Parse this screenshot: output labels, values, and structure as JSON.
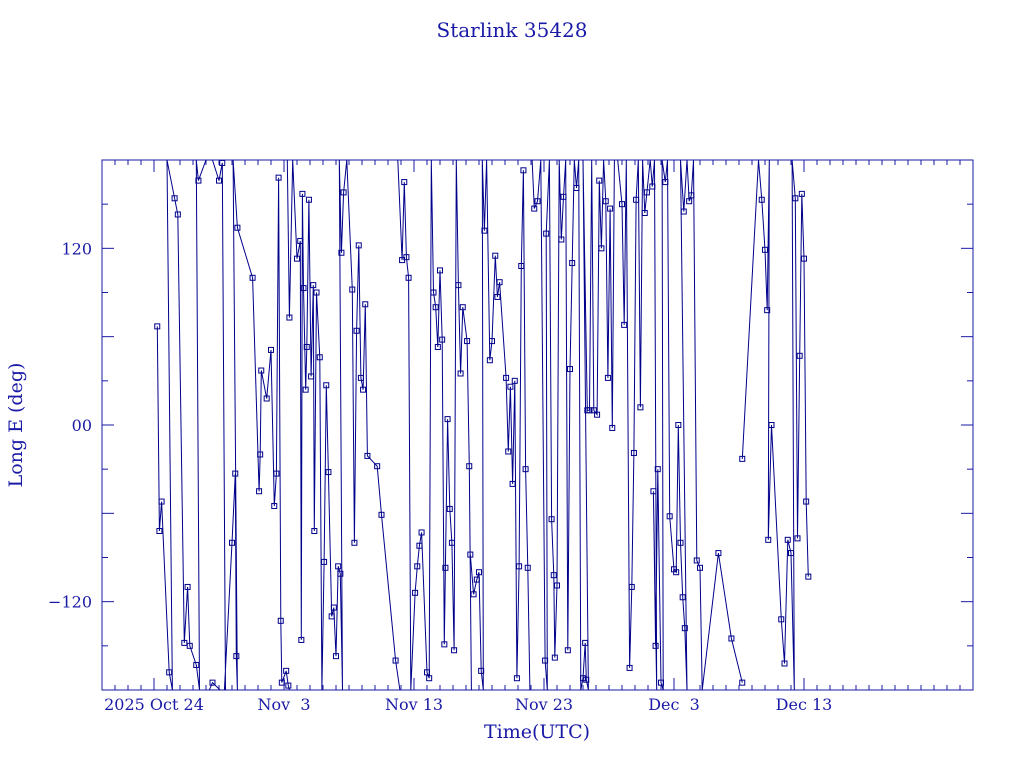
{
  "chart_data": {
    "type": "line",
    "title": "Starlink 35428",
    "xlabel": "Time(UTC)",
    "ylabel": "Long E (deg)",
    "x_ticks": [
      {
        "date": "2025-10-24",
        "label": "2025 Oct 24"
      },
      {
        "date": "2025-11-03",
        "label": "Nov  3"
      },
      {
        "date": "2025-11-13",
        "label": "Nov 13"
      },
      {
        "date": "2025-11-23",
        "label": "Nov 23"
      },
      {
        "date": "2025-12-03",
        "label": "Dec  3"
      },
      {
        "date": "2025-12-13",
        "label": "Dec 13"
      }
    ],
    "y_ticks": [
      {
        "value": 120,
        "label": "120"
      },
      {
        "value": 0,
        "label": "00"
      },
      {
        "value": -120,
        "label": "−120"
      }
    ],
    "xlim": [
      "2025-10-20",
      "2025-12-26"
    ],
    "ylim": [
      -180,
      180
    ],
    "grid": false,
    "colors": {
      "series": "#00008b",
      "axes": "#1a1aa6",
      "text": "#1a1aa6"
    },
    "series": [
      {
        "values": [
          [
            "2025-10-24T06:00",
            67
          ],
          [
            "2025-10-24T10:00",
            -72
          ],
          [
            "2025-10-24T14:00",
            -52
          ],
          [
            "2025-10-25T04:00",
            -168
          ],
          [
            "2025-10-25T10:00",
            -180
          ],
          [
            "2025-10-25T00:00",
            180
          ],
          [
            "2025-10-25T14:00",
            154
          ],
          [
            "2025-10-25T20:00",
            143
          ],
          [
            "2025-10-26T08:00",
            -148
          ],
          [
            "2025-10-26T14:00",
            -110
          ],
          [
            "2025-10-26T18:00",
            -150
          ],
          [
            "2025-10-27T06:00",
            -163
          ],
          [
            "2025-10-27T12:00",
            -180
          ],
          [
            "2025-10-27T06:00",
            180
          ],
          [
            "2025-10-27T10:00",
            166
          ],
          [
            "2025-10-28T00:00",
            180
          ],
          [
            "2025-10-28T12:00",
            180
          ],
          [
            "2025-10-29T00:00",
            166
          ],
          [
            "2025-10-29T06:00",
            178
          ],
          [
            "2025-10-29T12:00",
            -180
          ],
          [
            "2025-10-28T06:00",
            -180
          ],
          [
            "2025-10-28T12:00",
            -175
          ],
          [
            "2025-10-29T02:00",
            -180
          ],
          [
            "2025-10-29T10:00",
            -180
          ],
          [
            "2025-10-30T00:00",
            -80
          ],
          [
            "2025-10-30T06:00",
            -33
          ],
          [
            "2025-10-30T08:00",
            -157
          ],
          [
            "2025-10-30T10:00",
            -180
          ],
          [
            "2025-10-30T02:00",
            180
          ],
          [
            "2025-10-30T10:00",
            134
          ],
          [
            "2025-10-31T14:00",
            100
          ],
          [
            "2025-11-01T02:00",
            -45
          ],
          [
            "2025-11-01T04:00",
            -20
          ],
          [
            "2025-11-01T06:00",
            37
          ],
          [
            "2025-11-01T16:00",
            18
          ],
          [
            "2025-11-02T00:00",
            51
          ],
          [
            "2025-11-02T06:00",
            -55
          ],
          [
            "2025-11-02T10:00",
            -33
          ],
          [
            "2025-11-02T14:00",
            168
          ],
          [
            "2025-11-02T18:00",
            -133
          ],
          [
            "2025-11-02T20:00",
            -175
          ],
          [
            "2025-11-03T04:00",
            -167
          ],
          [
            "2025-11-03T08:00",
            -177
          ],
          [
            "2025-11-03T10:00",
            -180
          ]
        ]
      },
      {
        "values": [
          [
            "2025-11-03T06:00",
            180
          ],
          [
            "2025-11-03T10:00",
            73
          ],
          [
            "2025-11-03T16:00",
            180
          ],
          [
            "2025-11-04T00:00",
            113
          ],
          [
            "2025-11-04T06:00",
            125
          ],
          [
            "2025-11-04T08:00",
            -146
          ],
          [
            "2025-11-04T10:00",
            157
          ],
          [
            "2025-11-04T12:00",
            93
          ],
          [
            "2025-11-04T16:00",
            24
          ],
          [
            "2025-11-04T18:00",
            53
          ],
          [
            "2025-11-04T22:00",
            153
          ],
          [
            "2025-11-05T02:00",
            33
          ],
          [
            "2025-11-05T06:00",
            95
          ],
          [
            "2025-11-05T08:00",
            -72
          ],
          [
            "2025-11-05T12:00",
            90
          ],
          [
            "2025-11-05T18:00",
            46
          ],
          [
            "2025-11-05T22:00",
            -180
          ],
          [
            "2025-11-06T02:00",
            -93
          ],
          [
            "2025-11-06T06:00",
            27
          ],
          [
            "2025-11-06T10:00",
            -32
          ],
          [
            "2025-11-06T16:00",
            -130
          ],
          [
            "2025-11-06T20:00",
            -124
          ],
          [
            "2025-11-07T00:00",
            -157
          ],
          [
            "2025-11-07T04:00",
            -96
          ],
          [
            "2025-11-07T08:00",
            -101
          ],
          [
            "2025-11-07T12:00",
            -180
          ],
          [
            "2025-11-07T06:00",
            180
          ],
          [
            "2025-11-07T10:00",
            117
          ],
          [
            "2025-11-07T14:00",
            158
          ],
          [
            "2025-11-07T20:00",
            180
          ],
          [
            "2025-11-08T06:00",
            92
          ],
          [
            "2025-11-08T10:00",
            -80
          ],
          [
            "2025-11-08T14:00",
            64
          ],
          [
            "2025-11-08T18:00",
            122
          ],
          [
            "2025-11-08T22:00",
            32
          ],
          [
            "2025-11-09T02:00",
            24
          ],
          [
            "2025-11-09T06:00",
            82
          ],
          [
            "2025-11-09T10:00",
            -21
          ],
          [
            "2025-11-10T04:00",
            -28
          ],
          [
            "2025-11-10T12:00",
            -61
          ],
          [
            "2025-11-11T14:00",
            -160
          ],
          [
            "2025-11-11T22:00",
            -180
          ]
        ]
      },
      {
        "values": [
          [
            "2025-11-11T18:00",
            180
          ],
          [
            "2025-11-12T02:00",
            112
          ],
          [
            "2025-11-12T06:00",
            165
          ],
          [
            "2025-11-12T10:00",
            114
          ],
          [
            "2025-11-12T14:00",
            100
          ],
          [
            "2025-11-12T18:00",
            -180
          ],
          [
            "2025-11-13T02:00",
            -114
          ],
          [
            "2025-11-13T06:00",
            -96
          ],
          [
            "2025-11-13T10:00",
            -82
          ],
          [
            "2025-11-13T14:00",
            -73
          ],
          [
            "2025-11-14T00:00",
            -168
          ],
          [
            "2025-11-14T04:00",
            -172
          ],
          [
            "2025-11-14T08:00",
            180
          ],
          [
            "2025-11-14T12:00",
            90
          ],
          [
            "2025-11-14T16:00",
            80
          ],
          [
            "2025-11-14T20:00",
            53
          ],
          [
            "2025-11-15T00:00",
            105
          ],
          [
            "2025-11-15T04:00",
            58
          ],
          [
            "2025-11-15T08:00",
            -149
          ],
          [
            "2025-11-15T10:00",
            -97
          ],
          [
            "2025-11-15T14:00",
            4
          ],
          [
            "2025-11-15T18:00",
            -57
          ],
          [
            "2025-11-15T22:00",
            -80
          ],
          [
            "2025-11-16T02:00",
            -153
          ],
          [
            "2025-11-16T06:00",
            180
          ],
          [
            "2025-11-16T10:00",
            95
          ],
          [
            "2025-11-16T14:00",
            35
          ],
          [
            "2025-11-16T18:00",
            80
          ],
          [
            "2025-11-17T02:00",
            57
          ],
          [
            "2025-11-17T06:00",
            -28
          ],
          [
            "2025-11-17T10:00",
            -180
          ]
        ]
      },
      {
        "values": [
          [
            "2025-11-17T08:00",
            -88
          ],
          [
            "2025-11-17T14:00",
            -115
          ],
          [
            "2025-11-17T20:00",
            -105
          ],
          [
            "2025-11-18T00:00",
            -100
          ],
          [
            "2025-11-18T04:00",
            -167
          ],
          [
            "2025-11-18T08:00",
            -180
          ],
          [
            "2025-11-18T06:00",
            180
          ],
          [
            "2025-11-18T10:00",
            132
          ],
          [
            "2025-11-18T14:00",
            180
          ],
          [
            "2025-11-18T20:00",
            44
          ],
          [
            "2025-11-19T00:00",
            57
          ],
          [
            "2025-11-19T06:00",
            115
          ],
          [
            "2025-11-19T10:00",
            87
          ],
          [
            "2025-11-19T14:00",
            97
          ],
          [
            "2025-11-20T02:00",
            32
          ],
          [
            "2025-11-20T06:00",
            -18
          ],
          [
            "2025-11-20T10:00",
            26
          ],
          [
            "2025-11-20T14:00",
            -40
          ],
          [
            "2025-11-20T18:00",
            30
          ],
          [
            "2025-11-20T22:00",
            -172
          ],
          [
            "2025-11-21T02:00",
            -96
          ],
          [
            "2025-11-21T06:00",
            108
          ],
          [
            "2025-11-21T10:00",
            173
          ],
          [
            "2025-11-21T14:00",
            -30
          ],
          [
            "2025-11-21T18:00",
            -97
          ],
          [
            "2025-11-21T22:00",
            -180
          ]
        ]
      },
      {
        "values": [
          [
            "2025-11-22T02:00",
            180
          ],
          [
            "2025-11-22T06:00",
            147
          ],
          [
            "2025-11-22T12:00",
            152
          ],
          [
            "2025-11-22T18:00",
            180
          ],
          [
            "2025-11-23T02:00",
            -160
          ],
          [
            "2025-11-23T06:00",
            -180
          ],
          [
            "2025-11-23T04:00",
            130
          ],
          [
            "2025-11-23T10:00",
            180
          ],
          [
            "2025-11-23T14:00",
            -64
          ],
          [
            "2025-11-23T18:00",
            -102
          ],
          [
            "2025-11-23T20:00",
            -158
          ],
          [
            "2025-11-24T00:00",
            -109
          ],
          [
            "2025-11-24T04:00",
            180
          ],
          [
            "2025-11-24T08:00",
            126
          ],
          [
            "2025-11-24T12:00",
            155
          ],
          [
            "2025-11-24T16:00",
            180
          ],
          [
            "2025-11-24T20:00",
            -153
          ],
          [
            "2025-11-25T00:00",
            38
          ],
          [
            "2025-11-25T04:00",
            110
          ],
          [
            "2025-11-25T08:00",
            180
          ],
          [
            "2025-11-25T12:00",
            161
          ],
          [
            "2025-11-25T16:00",
            180
          ],
          [
            "2025-11-25T20:00",
            -180
          ],
          [
            "2025-11-26T00:00",
            -172
          ],
          [
            "2025-11-26T04:00",
            -148
          ],
          [
            "2025-11-26T06:00",
            -173
          ],
          [
            "2025-11-26T10:00",
            -180
          ],
          [
            "2025-11-26T00:00",
            180
          ],
          [
            "2025-11-26T08:00",
            10
          ],
          [
            "2025-11-26T12:00",
            10
          ],
          [
            "2025-11-26T16:00",
            180
          ],
          [
            "2025-11-26T20:00",
            10
          ],
          [
            "2025-11-27T02:00",
            7
          ],
          [
            "2025-11-27T06:00",
            166
          ],
          [
            "2025-11-27T10:00",
            120
          ],
          [
            "2025-11-27T14:00",
            180
          ],
          [
            "2025-11-27T18:00",
            152
          ],
          [
            "2025-11-27T22:00",
            32
          ],
          [
            "2025-11-28T02:00",
            147
          ],
          [
            "2025-11-28T06:00",
            -2
          ],
          [
            "2025-11-28T10:00",
            180
          ]
        ]
      },
      {
        "values": [
          [
            "2025-11-28T16:00",
            180
          ],
          [
            "2025-11-29T00:00",
            150
          ],
          [
            "2025-11-29T04:00",
            68
          ],
          [
            "2025-11-29T08:00",
            180
          ],
          [
            "2025-11-29T14:00",
            -165
          ],
          [
            "2025-11-29T18:00",
            -110
          ],
          [
            "2025-11-29T22:00",
            -19
          ],
          [
            "2025-11-30T02:00",
            153
          ],
          [
            "2025-11-30T06:00",
            180
          ],
          [
            "2025-11-30T10:00",
            12
          ],
          [
            "2025-11-30T14:00",
            180
          ],
          [
            "2025-11-30T18:00",
            144
          ],
          [
            "2025-11-30T22:00",
            158
          ],
          [
            "2025-12-01T04:00",
            180
          ],
          [
            "2025-12-01T08:00",
            162
          ],
          [
            "2025-12-01T12:00",
            180
          ],
          [
            "2025-12-01T16:00",
            -180
          ],
          [
            "2025-12-01T10:00",
            -45
          ],
          [
            "2025-12-01T14:00",
            -150
          ],
          [
            "2025-12-01T18:00",
            -30
          ],
          [
            "2025-12-02T00:00",
            -175
          ],
          [
            "2025-12-02T04:00",
            -180
          ],
          [
            "2025-12-02T02:00",
            180
          ],
          [
            "2025-12-02T08:00",
            165
          ],
          [
            "2025-12-02T12:00",
            180
          ],
          [
            "2025-12-02T16:00",
            -62
          ],
          [
            "2025-12-03T00:00",
            -98
          ],
          [
            "2025-12-03T04:00",
            -100
          ],
          [
            "2025-12-03T08:00",
            0
          ],
          [
            "2025-12-03T12:00",
            -80
          ],
          [
            "2025-12-03T16:00",
            -117
          ],
          [
            "2025-12-03T20:00",
            -138
          ],
          [
            "2025-12-04T00:00",
            -180
          ],
          [
            "2025-12-03T12:00",
            180
          ],
          [
            "2025-12-03T18:00",
            145
          ],
          [
            "2025-12-04T00:00",
            180
          ],
          [
            "2025-12-04T04:00",
            152
          ],
          [
            "2025-12-04T08:00",
            156
          ],
          [
            "2025-12-04T12:00",
            180
          ],
          [
            "2025-12-04T18:00",
            -92
          ],
          [
            "2025-12-05T00:00",
            -97
          ],
          [
            "2025-12-05T04:00",
            -180
          ],
          [
            "2025-12-06T10:00",
            -87
          ],
          [
            "2025-12-07T10:00",
            -145
          ],
          [
            "2025-12-08T06:00",
            -175
          ]
        ]
      },
      {
        "values": [
          [
            "2025-12-08T06:00",
            -23
          ],
          [
            "2025-12-09T12:00",
            180
          ],
          [
            "2025-12-09T18:00",
            153
          ],
          [
            "2025-12-10T00:00",
            119
          ],
          [
            "2025-12-10T04:00",
            78
          ],
          [
            "2025-12-10T08:00",
            180
          ],
          [
            "2025-12-10T06:00",
            -78
          ],
          [
            "2025-12-10T12:00",
            0
          ],
          [
            "2025-12-11T06:00",
            -132
          ],
          [
            "2025-12-11T12:00",
            -162
          ],
          [
            "2025-12-11T18:00",
            -78
          ],
          [
            "2025-12-12T00:00",
            -87
          ],
          [
            "2025-12-12T06:00",
            -180
          ],
          [
            "2025-12-12T02:00",
            180
          ],
          [
            "2025-12-12T08:00",
            154
          ],
          [
            "2025-12-12T12:00",
            -77
          ],
          [
            "2025-12-12T16:00",
            47
          ],
          [
            "2025-12-12T20:00",
            157
          ],
          [
            "2025-12-13T00:00",
            113
          ],
          [
            "2025-12-13T04:00",
            -52
          ],
          [
            "2025-12-13T08:00",
            -103
          ]
        ]
      }
    ]
  }
}
